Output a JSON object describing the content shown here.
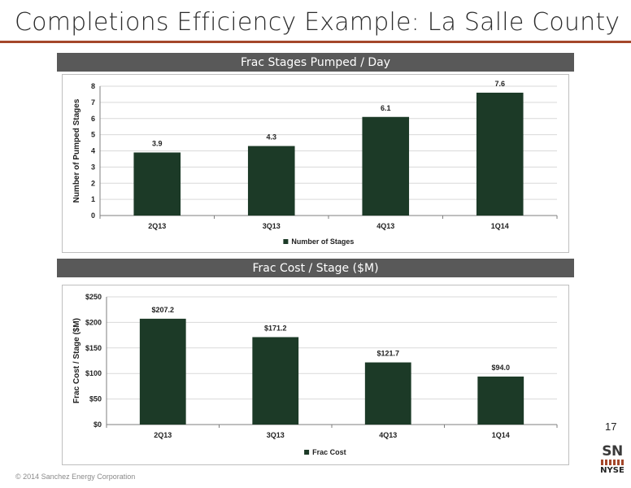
{
  "slide": {
    "title": "Completions Efficiency Example: La Salle County",
    "page_number": "17",
    "copyright": "© 2014 Sanchez Energy Corporation",
    "logo": {
      "text_top": "SN",
      "text_bottom": "NYSE"
    },
    "accent_color": "#a4472a",
    "bar_color": "#1c3a27",
    "header_bar_color": "#595959"
  },
  "sections": [
    {
      "title": "Frac Stages Pumped / Day"
    },
    {
      "title": "Frac Cost / Stage ($M)"
    }
  ],
  "chart_data": [
    {
      "type": "bar",
      "title": "Frac Stages Pumped / Day",
      "categories": [
        "2Q13",
        "3Q13",
        "4Q13",
        "1Q14"
      ],
      "series": [
        {
          "name": "Number of Stages",
          "values": [
            3.9,
            4.3,
            6.1,
            7.6
          ],
          "labels": [
            "3.9",
            "4.3",
            "6.1",
            "7.6"
          ]
        }
      ],
      "ylabel": "Number of Pumped Stages",
      "xlabel": "",
      "ylim": [
        0,
        8
      ],
      "yticks": [
        0,
        1,
        2,
        3,
        4,
        5,
        6,
        7,
        8
      ],
      "ytick_labels": [
        "0",
        "1",
        "2",
        "3",
        "4",
        "5",
        "6",
        "7",
        "8"
      ],
      "grid": true,
      "legend": "bottom"
    },
    {
      "type": "bar",
      "title": "Frac Cost / Stage ($M)",
      "categories": [
        "2Q13",
        "3Q13",
        "4Q13",
        "1Q14"
      ],
      "series": [
        {
          "name": "Frac Cost",
          "values": [
            207.2,
            171.2,
            121.7,
            94.0
          ],
          "labels": [
            "$207.2",
            "$171.2",
            "$121.7",
            "$94.0"
          ]
        }
      ],
      "ylabel": "Frac Cost / Stage ($M)",
      "xlabel": "",
      "ylim": [
        0,
        250
      ],
      "yticks": [
        0,
        50,
        100,
        150,
        200,
        250
      ],
      "ytick_labels": [
        "$0",
        "$50",
        "$100",
        "$150",
        "$200",
        "$250"
      ],
      "grid": true,
      "legend": "bottom"
    }
  ]
}
